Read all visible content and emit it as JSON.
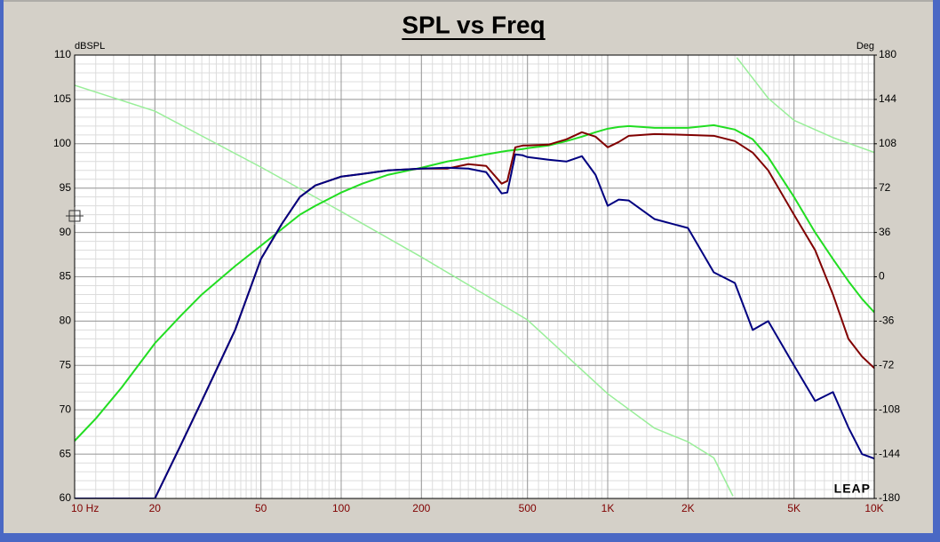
{
  "chart_data": {
    "type": "line",
    "title": "SPL vs Freq",
    "y_label": "dBSPL",
    "y2_label": "Deg",
    "watermark": "LEAP",
    "log_x": true,
    "grid": true,
    "minor_grid": true,
    "xlim": [
      10,
      10000
    ],
    "xticks": [
      {
        "value": 10,
        "label": "10 Hz"
      },
      20,
      50,
      100,
      200,
      500,
      {
        "value": 1000,
        "label": "1K"
      },
      {
        "value": 2000,
        "label": "2K"
      },
      {
        "value": 5000,
        "label": "5K"
      },
      {
        "value": 10000,
        "label": "10K"
      }
    ],
    "ylim": [
      60,
      110
    ],
    "yticks": [
      60,
      65,
      70,
      75,
      80,
      85,
      90,
      95,
      100,
      105,
      110
    ],
    "y2lim": [
      -180,
      180
    ],
    "y2ticks": [
      -180,
      -144,
      -108,
      -72,
      -36,
      0,
      36,
      72,
      108,
      144,
      180
    ],
    "x": [
      10,
      12,
      15,
      20,
      25,
      30,
      40,
      50,
      60,
      70,
      80,
      100,
      120,
      150,
      200,
      250,
      300,
      350,
      400,
      420,
      450,
      480,
      500,
      600,
      700,
      800,
      900,
      1000,
      1100,
      1200,
      1500,
      2000,
      2500,
      3000,
      3500,
      4000,
      5000,
      6000,
      7000,
      8000,
      9000,
      10000
    ],
    "series": [
      {
        "color": "#22dd22",
        "values": [
          66.5,
          69,
          72.5,
          77.5,
          80.6,
          83,
          86.2,
          88.5,
          90.4,
          92,
          93,
          94.5,
          95.5,
          96.5,
          97.3,
          98,
          98.4,
          98.8,
          99.1,
          99.2,
          99.3,
          99.4,
          99.5,
          99.8,
          100.3,
          100.8,
          101.3,
          101.7,
          101.9,
          102,
          101.8,
          101.8,
          102.1,
          101.6,
          100.5,
          98.5,
          94,
          90,
          87,
          84.5,
          82.5,
          81
        ]
      },
      {
        "color": "#800000",
        "values": [
          60,
          60,
          60,
          60,
          66,
          71,
          79,
          87,
          91,
          94,
          95.3,
          96.3,
          96.6,
          97,
          97.2,
          97.2,
          97.7,
          97.5,
          95.5,
          95.8,
          99.6,
          99.8,
          99.8,
          99.9,
          100.5,
          101.3,
          100.8,
          99.6,
          100.2,
          100.9,
          101.1,
          101,
          100.9,
          100.3,
          99,
          97,
          92,
          88,
          83,
          78,
          76,
          74.7
        ]
      },
      {
        "color": "#000080",
        "values": [
          60,
          60,
          60,
          60,
          66,
          71,
          79,
          87,
          91,
          94,
          95.3,
          96.3,
          96.6,
          97,
          97.2,
          97.3,
          97.2,
          96.8,
          94.4,
          94.5,
          98.8,
          98.7,
          98.5,
          98.2,
          98,
          98.6,
          96.5,
          93,
          93.7,
          93.6,
          91.5,
          90.5,
          85.5,
          84.3,
          79,
          80,
          75,
          71,
          72,
          68,
          65,
          64.5
        ]
      },
      {
        "color": "#99ee99",
        "axis": "y2",
        "x": [
          10,
          20,
          50,
          100,
          200,
          500,
          1000,
          1500,
          2000,
          2500,
          2950,
          3000,
          3050,
          4000,
          5000,
          7000,
          10000
        ],
        "values": [
          155.5,
          134.5,
          89,
          53,
          16,
          -35,
          -95,
          -123,
          -134,
          -147,
          -178,
          null,
          178,
          145,
          127,
          113,
          101
        ]
      }
    ]
  }
}
